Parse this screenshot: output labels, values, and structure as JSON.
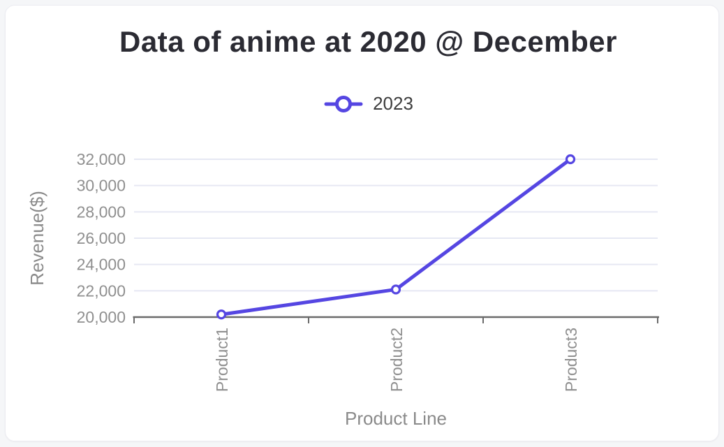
{
  "window": {
    "background": "#f5f6f8",
    "card_background": "#ffffff",
    "card_border": "#ececf1"
  },
  "title": {
    "text": "Data of anime at 2020 @ December",
    "color": "#2b2b33"
  },
  "legend": {
    "position": "top",
    "text_color": "#3d3d3d",
    "items": [
      {
        "label": "2023",
        "color": "#5546e2",
        "marker": "hollow-circle-on-line"
      }
    ]
  },
  "chart_data": {
    "type": "line",
    "title": "Data of anime at 2020 @ December",
    "categories": [
      "Product1",
      "Product2",
      "Product3"
    ],
    "series": [
      {
        "name": "2023",
        "color": "#5546e2",
        "values": [
          20200,
          22100,
          32000
        ]
      }
    ],
    "xlabel": "Product Line",
    "ylabel": "Revenue($)",
    "ylim": [
      20000,
      32000
    ],
    "ytick_step": 2000,
    "ytick_labels": [
      "20,000",
      "22,000",
      "24,000",
      "26,000",
      "28,000",
      "30,000",
      "32,000"
    ],
    "grid": true,
    "legend_position": "top",
    "x_label_rotation": -90,
    "marker_style": "hollow-circle",
    "colors": {
      "axis_line": "#6a6a6a",
      "grid_line": "#e6e8f3",
      "tick_label": "#8f8f8f",
      "axis_title": "#8a8a8a"
    }
  }
}
